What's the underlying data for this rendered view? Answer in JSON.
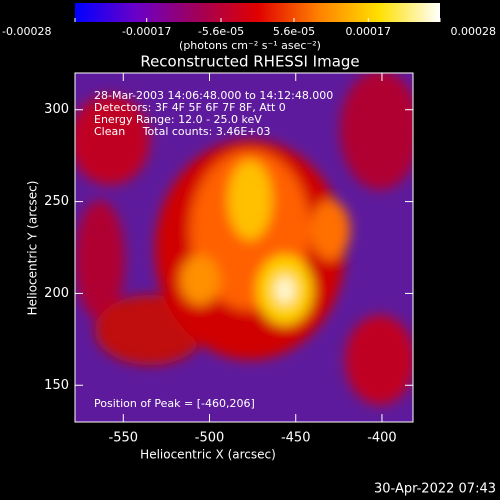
{
  "chart_data": {
    "type": "image",
    "title": "Reconstructed RHESSI Image",
    "x_label": "Heliocentric X (arcsec)",
    "y_label": "Heliocentric Y (arcsec)",
    "xlim": [
      -578,
      -382
    ],
    "xticks": [
      -550,
      -500,
      -450,
      -400
    ],
    "ylim": [
      130,
      320
    ],
    "yticks": [
      150,
      200,
      250,
      300
    ],
    "annotations": [
      "28-Mar-2003 14:06:48.000 to 14:12:48.000",
      "Detectors: 3F 4F 5F 6F 7F 8F, Att 0",
      "Energy Range: 12.0 - 25.0 keV",
      "Clean     Total counts: 3.46E+03"
    ],
    "peak_label": "Position of Peak = [-460,206]",
    "colorbar": {
      "lim": [
        -0.00028,
        0.00028
      ],
      "ticks": [
        -0.00028,
        -0.00017,
        {
          "value": -5.6e-05,
          "label": "-5.6e-05"
        },
        {
          "value": 5.6e-05,
          "label": "5.6e-05"
        },
        0.00017,
        0.00028
      ],
      "label": "(photons cm⁻² s⁻¹ asec⁻²)",
      "colors": [
        "#0000ff",
        "#6a00c8",
        "#a0005a",
        "#e00000",
        "#ff8000",
        "#ffe000",
        "#ffffff"
      ]
    },
    "footer": "30-Apr-2022 07:43"
  }
}
